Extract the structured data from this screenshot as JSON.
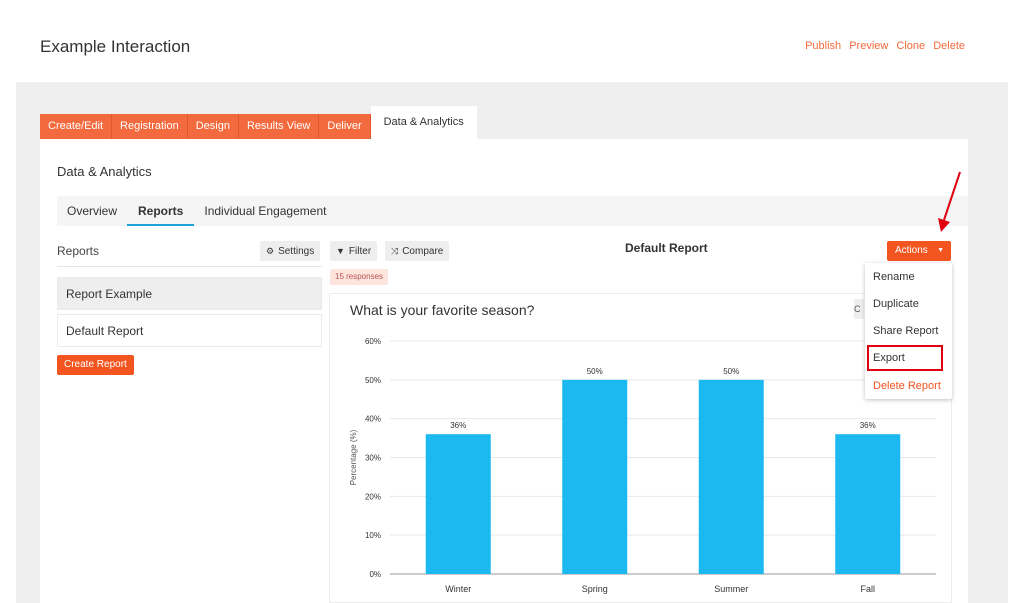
{
  "header": {
    "title": "Example Interaction",
    "links": [
      "Publish",
      "Preview",
      "Clone",
      "Delete"
    ]
  },
  "main_tabs": [
    "Create/Edit",
    "Registration",
    "Design",
    "Results View",
    "Deliver",
    "Data & Analytics"
  ],
  "panel": {
    "title": "Data & Analytics",
    "subtabs": [
      "Overview",
      "Reports",
      "Individual Engagement"
    ]
  },
  "reports_sidebar": {
    "label": "Reports",
    "settings_label": "Settings",
    "items": [
      "Report Example",
      "Default Report"
    ],
    "create_label": "Create Report"
  },
  "toolbar": {
    "filter_label": "Filter",
    "compare_label": "Compare"
  },
  "report": {
    "title": "Default Report",
    "responses_badge": "15 responses",
    "actions_label": "Actions",
    "question": "What is your favorite season?"
  },
  "actions_menu": [
    "Rename",
    "Duplicate",
    "Share Report",
    "Export",
    "Delete Report"
  ],
  "colors": {
    "accent": "#f26a3d",
    "bar": "#1cb8f0",
    "highlight": "#e0000f"
  },
  "chart_data": {
    "type": "bar",
    "categories": [
      "Winter",
      "Spring",
      "Summer",
      "Fall"
    ],
    "values": [
      36,
      50,
      50,
      36
    ],
    "value_labels": [
      "36%",
      "50%",
      "50%",
      "36%"
    ],
    "ylabel": "Percentage (%)",
    "ylim": [
      0,
      60
    ],
    "yticks": [
      0,
      10,
      20,
      30,
      40,
      50,
      60
    ],
    "ytick_labels": [
      "0%",
      "10%",
      "20%",
      "30%",
      "40%",
      "50%",
      "60%"
    ],
    "grid": true
  }
}
